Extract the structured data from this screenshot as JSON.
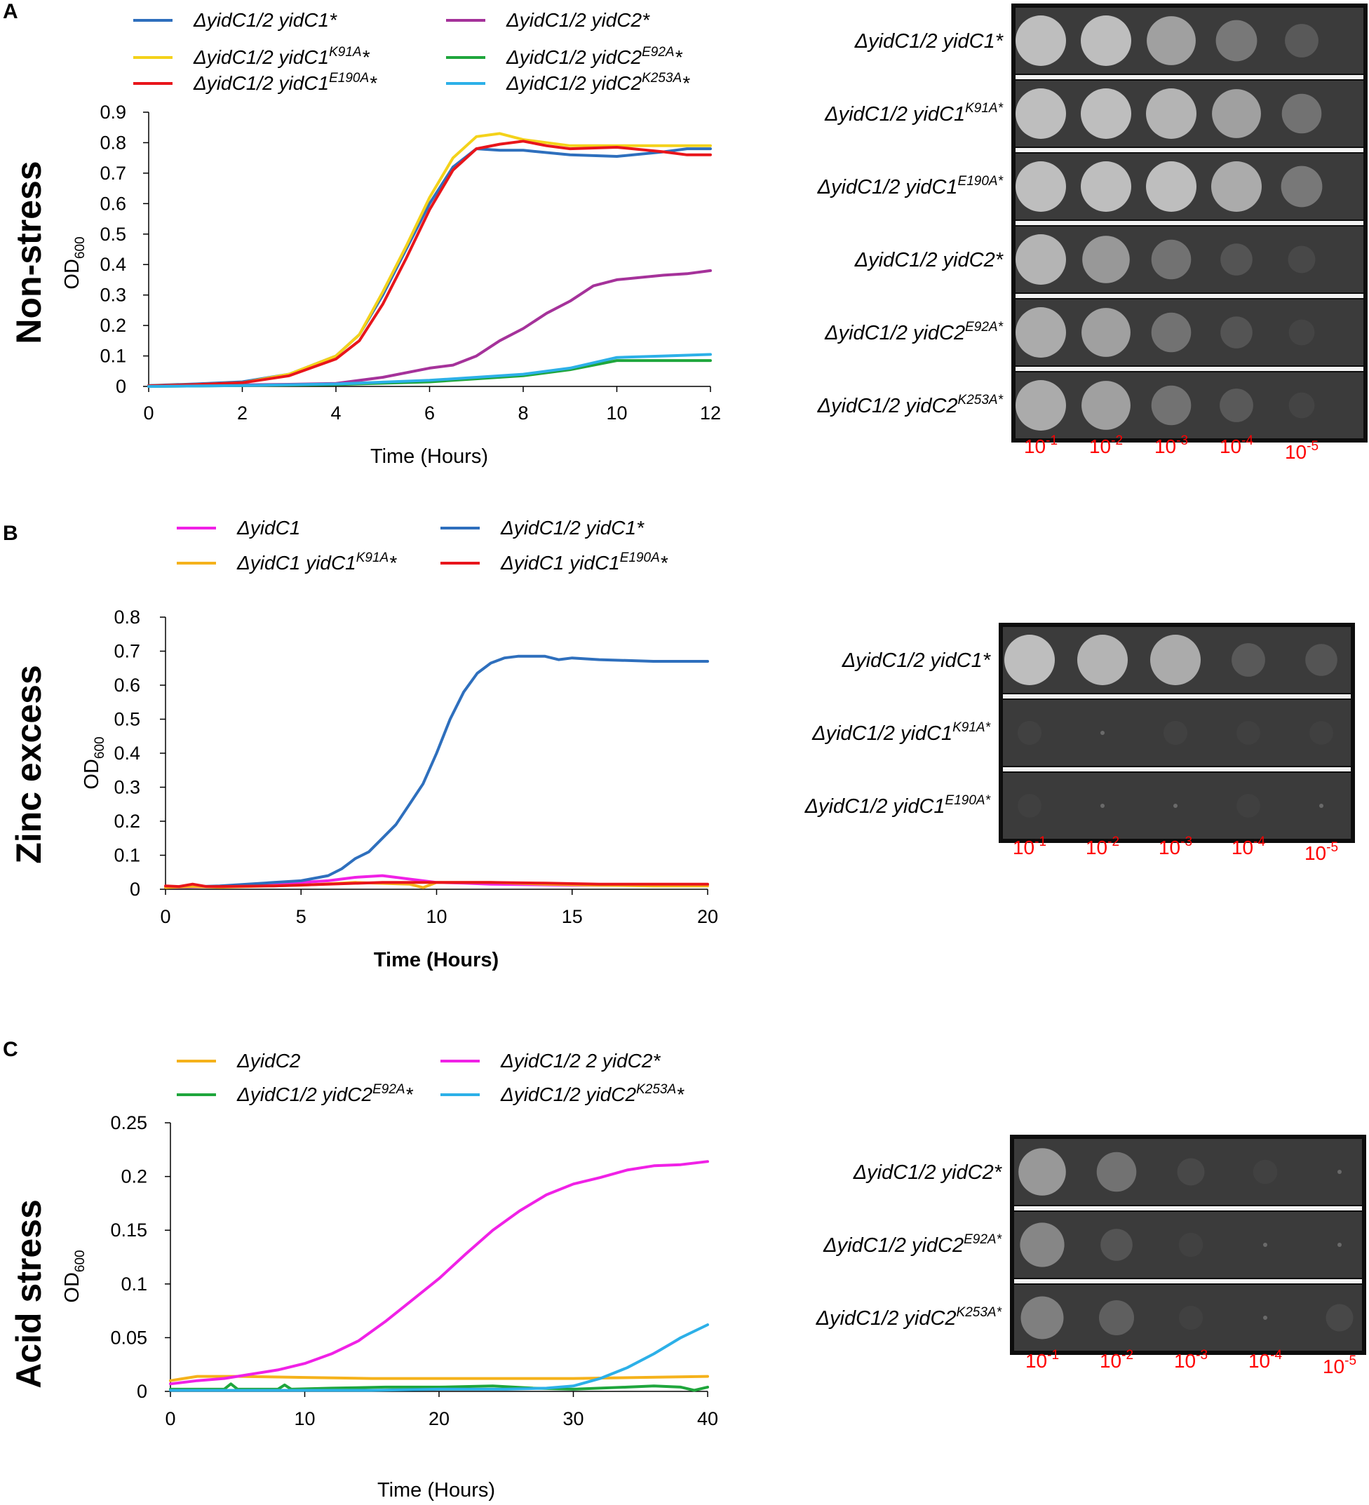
{
  "panels": [
    {
      "letter": "A",
      "condition": "Non-stress",
      "chart_data": {
        "type": "line",
        "title": "",
        "xlabel": "Time  (Hours)",
        "ylabel": "OD600",
        "xlim": [
          0,
          12
        ],
        "ylim": [
          0,
          0.9
        ],
        "xticks": [
          "0",
          "2",
          "4",
          "6",
          "8",
          "10",
          "12"
        ],
        "yticks": [
          "0",
          "0.1",
          "0.2",
          "0.3",
          "0.4",
          "0.5",
          "0.6",
          "0.7",
          "0.8",
          "0.9"
        ],
        "series": [
          {
            "name": "ΔyidC1/2  yidC1*",
            "color": "#2e6fbd",
            "x": [
              0,
              1,
              2,
              3,
              4,
              4.5,
              5,
              5.5,
              6,
              6.5,
              7,
              7.5,
              8,
              9,
              10,
              11,
              11.5,
              12
            ],
            "y": [
              0.003,
              0.008,
              0.015,
              0.04,
              0.1,
              0.17,
              0.3,
              0.45,
              0.6,
              0.72,
              0.78,
              0.775,
              0.775,
              0.76,
              0.755,
              0.77,
              0.78,
              0.78
            ]
          },
          {
            "name": "ΔyidC1/2  yidC2*",
            "color": "#a5329a",
            "x": [
              0,
              2,
              3,
              4,
              5,
              6,
              6.5,
              7,
              7.5,
              8,
              8.5,
              9,
              9.5,
              10,
              11,
              11.5,
              12
            ],
            "y": [
              0,
              0.005,
              0.007,
              0.01,
              0.03,
              0.06,
              0.07,
              0.1,
              0.15,
              0.19,
              0.24,
              0.28,
              0.33,
              0.35,
              0.365,
              0.37,
              0.38
            ]
          },
          {
            "name": "ΔyidC1/2  yidC1K91A*",
            "label_main": "ΔyidC1/2  yidC1",
            "label_sup": "K91A",
            "label_tail": "*",
            "color": "#f4d21a",
            "x": [
              0,
              1,
              2,
              3,
              4,
              4.5,
              5,
              5.5,
              6,
              6.5,
              7,
              7.5,
              8,
              9,
              10,
              11,
              12
            ],
            "y": [
              0.002,
              0.006,
              0.012,
              0.04,
              0.1,
              0.17,
              0.31,
              0.46,
              0.62,
              0.75,
              0.82,
              0.83,
              0.81,
              0.79,
              0.79,
              0.79,
              0.79
            ]
          },
          {
            "name": "ΔyidC1/2  yidC2E92A*",
            "label_main": "ΔyidC1/2  yidC2",
            "label_sup": "E92A",
            "label_tail": "*",
            "color": "#1fa63c",
            "x": [
              0,
              2,
              4,
              6,
              7,
              8,
              9,
              10,
              11,
              12
            ],
            "y": [
              0,
              0.003,
              0.006,
              0.015,
              0.025,
              0.035,
              0.055,
              0.085,
              0.085,
              0.085
            ]
          },
          {
            "name": "ΔyidC1/2  yidC1E190A*",
            "label_main": "ΔyidC1/2  yidC1",
            "label_sup": "E190A",
            "label_tail": "*",
            "color": "#e8151b",
            "x": [
              0,
              1,
              2,
              3,
              4,
              4.5,
              5,
              5.5,
              6,
              6.5,
              7,
              7.5,
              8,
              8.5,
              9,
              10,
              11,
              11.5,
              12
            ],
            "y": [
              0.002,
              0.006,
              0.012,
              0.035,
              0.09,
              0.15,
              0.27,
              0.42,
              0.58,
              0.71,
              0.78,
              0.795,
              0.805,
              0.79,
              0.78,
              0.785,
              0.77,
              0.76,
              0.76
            ]
          },
          {
            "name": "ΔyidC1/2  yidC2K253A*",
            "label_main": "ΔyidC1/2  yidC2",
            "label_sup": "K253A",
            "label_tail": "*",
            "color": "#2cb0e8",
            "x": [
              0,
              2,
              4,
              6,
              7,
              8,
              9,
              10,
              11,
              12
            ],
            "y": [
              0,
              0.003,
              0.008,
              0.02,
              0.03,
              0.04,
              0.06,
              0.095,
              0.1,
              0.105
            ]
          }
        ]
      },
      "plate": {
        "rows": [
          {
            "main": "ΔyidC1/2  yidC1*",
            "sup": "",
            "tail": "",
            "spots": [
              1,
              1,
              0.85,
              0.6,
              0.35
            ]
          },
          {
            "main": "ΔyidC1/2  yidC1",
            "sup": "K91A",
            "tail": "*",
            "spots": [
              1,
              1,
              0.95,
              0.85,
              0.55
            ]
          },
          {
            "main": "ΔyidC1/2  yidC1",
            "sup": "E190A",
            "tail": "*",
            "spots": [
              1,
              1,
              1,
              0.9,
              0.6
            ]
          },
          {
            "main": "ΔyidC1/2  yidC2*",
            "sup": "",
            "tail": "",
            "spots": [
              0.95,
              0.8,
              0.55,
              0.3,
              0.15
            ]
          },
          {
            "main": "ΔyidC1/2  yidC2",
            "sup": "E92A",
            "tail": "*",
            "spots": [
              0.9,
              0.85,
              0.55,
              0.3,
              0.1
            ]
          },
          {
            "main": "ΔyidC1/2  yidC2",
            "sup": "K253A",
            "tail": "*",
            "spots": [
              0.9,
              0.85,
              0.55,
              0.35,
              0.1
            ]
          }
        ],
        "dilutions": [
          {
            "base": "10",
            "exp": "-1"
          },
          {
            "base": "10",
            "exp": "-2"
          },
          {
            "base": "10",
            "exp": "-3"
          },
          {
            "base": "10",
            "exp": "-4"
          },
          {
            "base": "10",
            "exp": "-5"
          }
        ]
      }
    },
    {
      "letter": "B",
      "condition": "Zinc excess",
      "chart_data": {
        "type": "line",
        "title": "",
        "xlabel": "Time (Hours)",
        "ylabel": "OD600",
        "xlim": [
          0,
          20
        ],
        "ylim": [
          0,
          0.8
        ],
        "xticks": [
          "0",
          "5",
          "10",
          "15",
          "20"
        ],
        "yticks": [
          "0",
          "0.1",
          "0.2",
          "0.3",
          "0.4",
          "0.5",
          "0.6",
          "0.7",
          "0.8"
        ],
        "series": [
          {
            "name": "ΔyidC1",
            "color": "#f021e6",
            "x": [
              0,
              2,
              4,
              5,
              6,
              7,
              8,
              8.5,
              9,
              9.5,
              10,
              11,
              12,
              15,
              20
            ],
            "y": [
              0.005,
              0.008,
              0.015,
              0.02,
              0.025,
              0.035,
              0.04,
              0.035,
              0.03,
              0.025,
              0.02,
              0.018,
              0.015,
              0.012,
              0.012
            ]
          },
          {
            "name": "ΔyidC1/2  yidC1*",
            "color": "#2e6fbd",
            "x": [
              0,
              2,
              4,
              5,
              6,
              6.5,
              7,
              7.5,
              8,
              8.5,
              9,
              9.5,
              10,
              10.5,
              11,
              11.5,
              12,
              12.5,
              13,
              14,
              14.5,
              15,
              16,
              18,
              20
            ],
            "y": [
              0.005,
              0.01,
              0.02,
              0.025,
              0.04,
              0.06,
              0.09,
              0.11,
              0.15,
              0.19,
              0.25,
              0.31,
              0.4,
              0.5,
              0.58,
              0.635,
              0.665,
              0.68,
              0.685,
              0.685,
              0.675,
              0.68,
              0.675,
              0.67,
              0.67
            ]
          },
          {
            "name": "ΔyidC1 yidC1K91A*",
            "label_main": "ΔyidC1 yidC1",
            "label_sup": "K91A",
            "label_tail": "*",
            "color": "#f5b21b",
            "x": [
              0,
              1,
              2,
              3,
              5,
              7,
              9,
              9.5,
              10,
              12,
              14,
              16,
              18,
              20
            ],
            "y": [
              0.005,
              0.008,
              0.006,
              0.008,
              0.012,
              0.02,
              0.015,
              0.005,
              0.02,
              0.02,
              0.015,
              0.012,
              0.01,
              0.01
            ]
          },
          {
            "name": "ΔyidC1 yidC1E190A*",
            "label_main": "ΔyidC1 yidC1",
            "label_sup": "E190A",
            "label_tail": "*",
            "color": "#e8151b",
            "x": [
              0,
              0.5,
              1,
              1.5,
              2,
              4,
              6,
              8,
              9,
              10,
              12,
              14,
              16,
              18,
              20
            ],
            "y": [
              0.01,
              0.008,
              0.015,
              0.008,
              0.008,
              0.01,
              0.015,
              0.02,
              0.02,
              0.02,
              0.02,
              0.018,
              0.015,
              0.015,
              0.015
            ]
          }
        ]
      },
      "plate": {
        "rows": [
          {
            "main": "ΔyidC1/2  yidC1*",
            "sup": "",
            "tail": "",
            "spots": [
              1,
              0.95,
              0.9,
              0.35,
              0.3
            ]
          },
          {
            "main": "ΔyidC1/2  yidC1",
            "sup": "K91A",
            "tail": "*",
            "spots": [
              0.04,
              0.0,
              0.04,
              0.03,
              0.03
            ]
          },
          {
            "main": "ΔyidC1/2  yidC1",
            "sup": "E190A",
            "tail": "*",
            "spots": [
              0.03,
              0.02,
              0.02,
              0.03,
              0.02
            ]
          }
        ],
        "dilutions": [
          {
            "base": "10",
            "exp": "-1"
          },
          {
            "base": "10",
            "exp": "-2"
          },
          {
            "base": "10",
            "exp": "-3"
          },
          {
            "base": "10",
            "exp": "-4"
          },
          {
            "base": "10",
            "exp": "-5"
          }
        ]
      }
    },
    {
      "letter": "C",
      "condition": "Acid stress",
      "chart_data": {
        "type": "line",
        "title": "",
        "xlabel": "Time  (Hours)",
        "ylabel": "OD600",
        "xlim": [
          0,
          40
        ],
        "ylim": [
          0,
          0.25
        ],
        "xticks": [
          "0",
          "10",
          "20",
          "30",
          "40"
        ],
        "yticks": [
          "0",
          "0.05",
          "0.1",
          "0.15",
          "0.2",
          "0.25"
        ],
        "series": [
          {
            "name": "ΔyidC2",
            "color": "#f5b21b",
            "x": [
              0,
              1,
              2,
              5,
              10,
              15,
              20,
              25,
              30,
              35,
              40
            ],
            "y": [
              0.01,
              0.012,
              0.014,
              0.014,
              0.013,
              0.012,
              0.012,
              0.012,
              0.012,
              0.013,
              0.014
            ]
          },
          {
            "name": "ΔyidC1/2  2 yidC2*",
            "color": "#f021e6",
            "x": [
              0,
              2,
              4,
              6,
              8,
              10,
              12,
              14,
              16,
              18,
              20,
              22,
              24,
              26,
              28,
              30,
              32,
              34,
              36,
              38,
              40
            ],
            "y": [
              0.007,
              0.01,
              0.012,
              0.016,
              0.02,
              0.026,
              0.035,
              0.047,
              0.065,
              0.085,
              0.105,
              0.128,
              0.15,
              0.168,
              0.183,
              0.193,
              0.199,
              0.206,
              0.21,
              0.211,
              0.214
            ]
          },
          {
            "name": "ΔyidC1/2  yidC2E92A*",
            "label_main": "ΔyidC1/2  yidC2",
            "label_sup": "E92A",
            "label_tail": "*",
            "color": "#1fa63c",
            "x": [
              0,
              2,
              4,
              4.5,
              5,
              6,
              8,
              8.5,
              9,
              12,
              16,
              20,
              24,
              27,
              30,
              34,
              36,
              38,
              39,
              40
            ],
            "y": [
              0.002,
              0.002,
              0.002,
              0.007,
              0.002,
              0.002,
              0.002,
              0.006,
              0.002,
              0.003,
              0.004,
              0.004,
              0.005,
              0.003,
              0.002,
              0.004,
              0.005,
              0.004,
              0.001,
              0.004
            ]
          },
          {
            "name": "ΔyidC1/2  yidC2K253A*",
            "label_main": "ΔyidC1/2  yidC2",
            "label_sup": "K253A",
            "label_tail": "*",
            "color": "#2cb0e8",
            "x": [
              0,
              5,
              10,
              15,
              20,
              25,
              28,
              30,
              32,
              34,
              36,
              38,
              40
            ],
            "y": [
              0.001,
              0.001,
              0.001,
              0.001,
              0.002,
              0.002,
              0.003,
              0.005,
              0.012,
              0.022,
              0.035,
              0.05,
              0.062
            ]
          }
        ]
      },
      "plate": {
        "rows": [
          {
            "main": "ΔyidC1/2  yidC2*",
            "sup": "",
            "tail": "",
            "spots": [
              0.8,
              0.55,
              0.15,
              0.05,
              0.02
            ]
          },
          {
            "main": "ΔyidC1/2  yidC2",
            "sup": "E92A",
            "tail": "*",
            "spots": [
              0.7,
              0.3,
              0.05,
              0.02,
              0.0
            ]
          },
          {
            "main": "ΔyidC1/2  yidC2",
            "sup": "K253A",
            "tail": "*",
            "spots": [
              0.65,
              0.4,
              0.04,
              0.02,
              0.15
            ]
          }
        ],
        "dilutions": [
          {
            "base": "10",
            "exp": "-1"
          },
          {
            "base": "10",
            "exp": "-2"
          },
          {
            "base": "10",
            "exp": "-3"
          },
          {
            "base": "10",
            "exp": "-4"
          },
          {
            "base": "10",
            "exp": "-5"
          }
        ]
      }
    }
  ]
}
